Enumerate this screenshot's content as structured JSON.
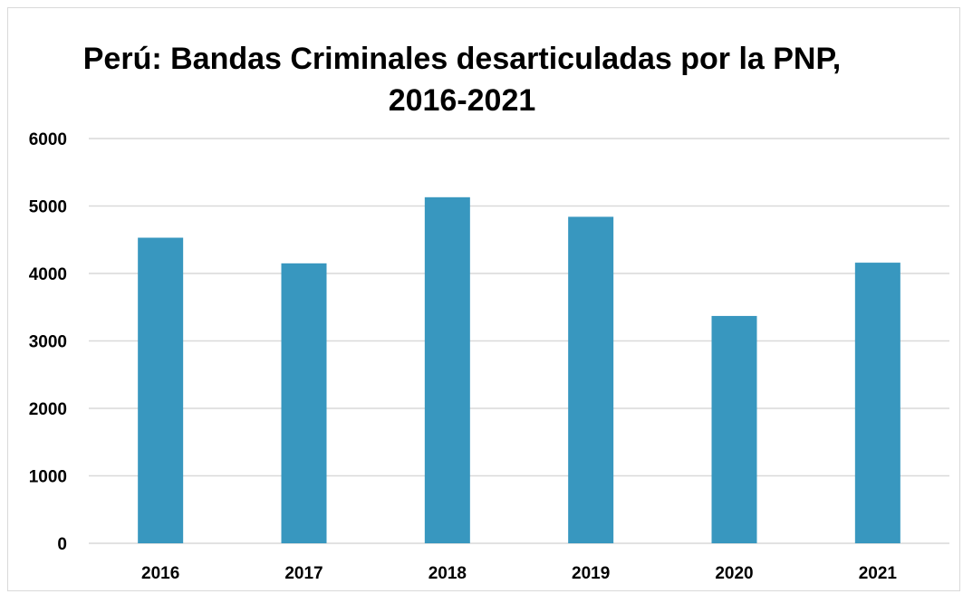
{
  "chart_data": {
    "type": "bar",
    "title_lines": [
      "Perú: Bandas Criminales desarticuladas por la PNP,",
      "2016-2021"
    ],
    "categories": [
      "2016",
      "2017",
      "2018",
      "2019",
      "2020",
      "2021"
    ],
    "values": [
      4530,
      4150,
      5130,
      4840,
      3370,
      4160
    ],
    "ylim": [
      0,
      6000
    ],
    "yticks": [
      0,
      1000,
      2000,
      3000,
      4000,
      5000,
      6000
    ],
    "grid": true,
    "legend": "none",
    "bar_color": "#3897bf",
    "grid_color": "#d9d9d9"
  }
}
